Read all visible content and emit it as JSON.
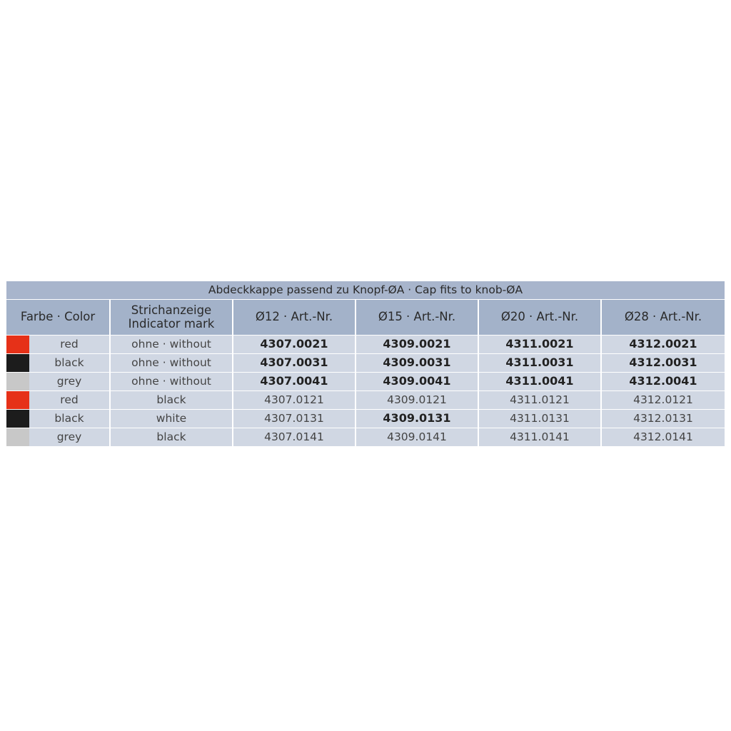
{
  "title": "Abdeckkappe passend zu Knopf-ØA · Cap fits to knob-ØA",
  "headers": {
    "color": "Farbe · Color",
    "indicator_line1": "Strichanzeige",
    "indicator_line2": "Indicator mark",
    "sizes": [
      "Ø12 · Art.-Nr.",
      "Ø15 · Art.-Nr.",
      "Ø20 · Art.-Nr.",
      "Ø28 · Art.-Nr."
    ]
  },
  "swatch_colors": {
    "red": "#e63118",
    "black": "#1c1c1c",
    "grey": "#c8c8c8"
  },
  "rows": [
    {
      "color": "red",
      "indicator": "ohne · without",
      "articles": [
        "4307.0021",
        "4309.0021",
        "4311.0021",
        "4312.0021"
      ],
      "bold": [
        true,
        true,
        true,
        true
      ]
    },
    {
      "color": "black",
      "indicator": "ohne · without",
      "articles": [
        "4307.0031",
        "4309.0031",
        "4311.0031",
        "4312.0031"
      ],
      "bold": [
        true,
        true,
        true,
        true
      ]
    },
    {
      "color": "grey",
      "indicator": "ohne · without",
      "articles": [
        "4307.0041",
        "4309.0041",
        "4311.0041",
        "4312.0041"
      ],
      "bold": [
        true,
        true,
        true,
        true
      ]
    },
    {
      "color": "red",
      "indicator": "black",
      "articles": [
        "4307.0121",
        "4309.0121",
        "4311.0121",
        "4312.0121"
      ],
      "bold": [
        false,
        false,
        false,
        false
      ]
    },
    {
      "color": "black",
      "indicator": "white",
      "articles": [
        "4307.0131",
        "4309.0131",
        "4311.0131",
        "4312.0131"
      ],
      "bold": [
        false,
        true,
        false,
        false
      ]
    },
    {
      "color": "grey",
      "indicator": "black",
      "articles": [
        "4307.0141",
        "4309.0141",
        "4311.0141",
        "4312.0141"
      ],
      "bold": [
        false,
        false,
        false,
        false
      ]
    }
  ]
}
